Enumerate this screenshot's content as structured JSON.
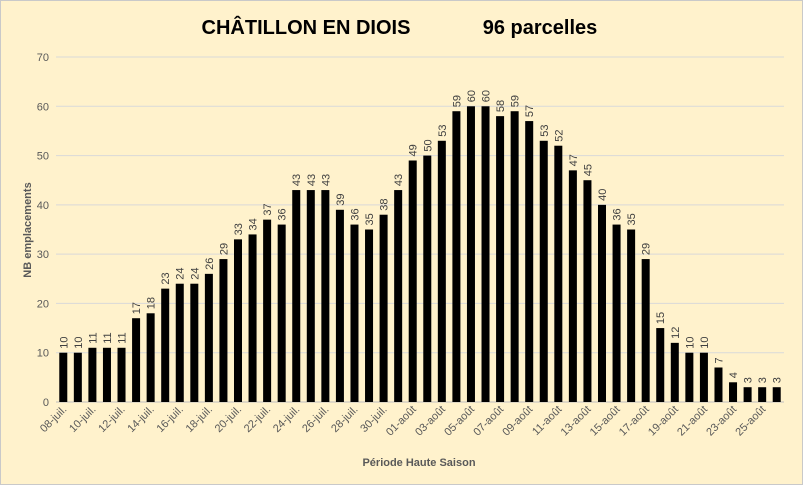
{
  "chart_data": {
    "type": "bar",
    "title": "CHÂTILLON EN DIOIS",
    "subtitle": "96 parcelles",
    "xlabel": "Période Haute Saison",
    "ylabel": "NB emplacements",
    "ylim": [
      0,
      70
    ],
    "yticks": [
      "0",
      "10",
      "20",
      "30",
      "40",
      "50",
      "60",
      "70"
    ],
    "grid": true,
    "bar_color": "#000000",
    "grid_color": "#d9d9d9",
    "categories": [
      "08-juil.",
      "09-juil.",
      "10-juil.",
      "11-juil.",
      "12-juil.",
      "13-juil.",
      "14-juil.",
      "15-juil.",
      "16-juil.",
      "17-juil.",
      "18-juil.",
      "19-juil.",
      "20-juil.",
      "21-juil.",
      "22-juil.",
      "23-juil.",
      "24-juil.",
      "25-juil.",
      "26-juil.",
      "27-juil.",
      "28-juil.",
      "29-juil.",
      "30-juil.",
      "31-juil.",
      "01-août",
      "02-août",
      "03-août",
      "04-août",
      "05-août",
      "06-août",
      "07-août",
      "08-août",
      "09-août",
      "10-août",
      "11-août",
      "12-août",
      "13-août",
      "14-août",
      "15-août",
      "16-août",
      "17-août",
      "18-août",
      "19-août",
      "20-août",
      "21-août",
      "22-août",
      "23-août",
      "24-août",
      "25-août",
      "26-août"
    ],
    "visible_tick_labels": [
      "08-juil.",
      "10-juil.",
      "12-juil.",
      "14-juil.",
      "16-juil.",
      "18-juil.",
      "20-juil.",
      "22-juil.",
      "24-juil.",
      "26-juil.",
      "28-juil.",
      "30-juil.",
      "01-août",
      "03-août",
      "05-août",
      "07-août",
      "09-août",
      "11-août",
      "13-août",
      "15-août",
      "17-août",
      "19-août",
      "21-août",
      "23-août",
      "25-août"
    ],
    "values": [
      10,
      10,
      11,
      11,
      11,
      17,
      18,
      23,
      24,
      24,
      26,
      29,
      33,
      34,
      37,
      36,
      43,
      43,
      43,
      39,
      36,
      35,
      38,
      43,
      49,
      50,
      53,
      59,
      60,
      60,
      58,
      59,
      57,
      53,
      52,
      47,
      45,
      40,
      36,
      35,
      29,
      15,
      12,
      10,
      10,
      7,
      4,
      3,
      3,
      3
    ]
  }
}
